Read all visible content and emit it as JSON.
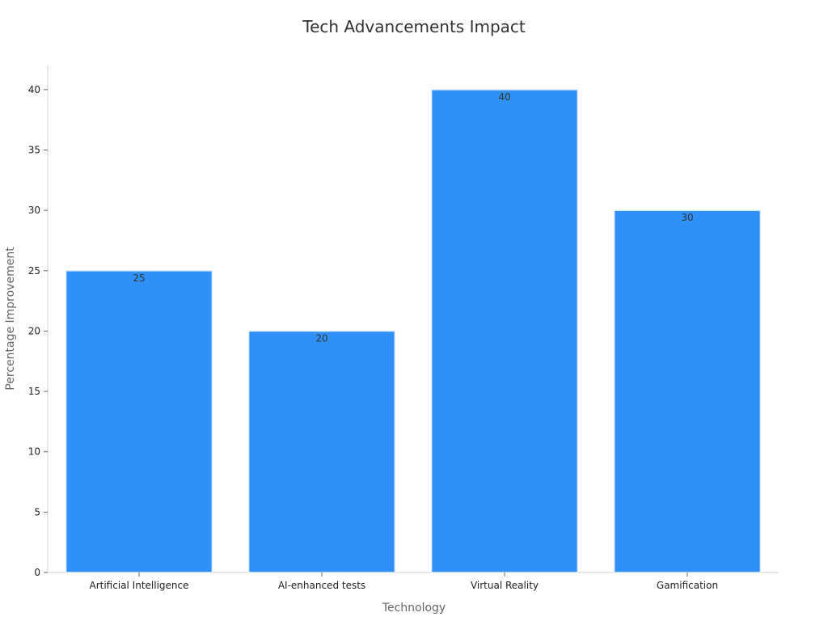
{
  "chart_data": {
    "type": "bar",
    "title": "Tech Advancements Impact",
    "xlabel": "Technology",
    "ylabel": "Percentage Improvement",
    "categories": [
      "Artificial Intelligence",
      "AI-enhanced tests",
      "Virtual Reality",
      "Gamification"
    ],
    "values": [
      25,
      20,
      40,
      30
    ],
    "ylim": [
      0,
      42
    ],
    "yticks": [
      0,
      5,
      10,
      15,
      20,
      25,
      30,
      35,
      40
    ],
    "grid": false,
    "data_labels": true,
    "bar_color": "#2f91f8",
    "bar_edge_color": "#e6efff"
  }
}
